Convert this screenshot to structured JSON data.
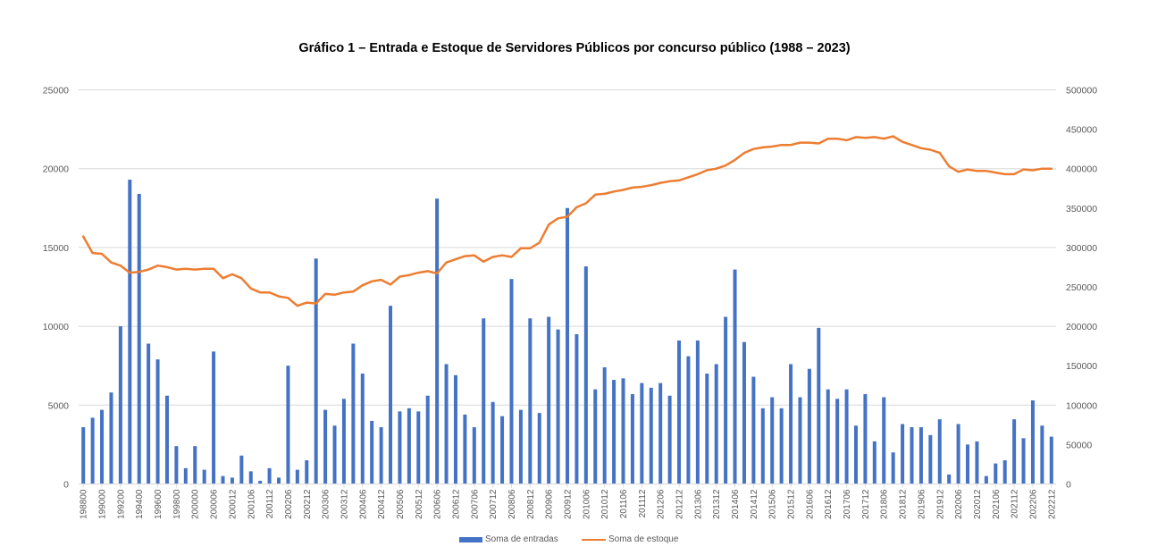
{
  "chart_data": {
    "type": "bar+line",
    "title": "Gráfico 1 – Entrada e Estoque de Servidores Públicos por concurso público (1988 – 2023)",
    "xlabel": "",
    "ylabel_left": "",
    "ylabel_right": "",
    "ylim_left": [
      0,
      25000
    ],
    "yticks_left": [
      "0",
      "5000",
      "10000",
      "15000",
      "20000",
      "25000"
    ],
    "ylim_right": [
      0,
      500000
    ],
    "yticks_right": [
      "0",
      "50000",
      "100000",
      "150000",
      "200000",
      "250000",
      "300000",
      "350000",
      "400000",
      "450000",
      "500000"
    ],
    "grid": true,
    "legend_position": "bottom",
    "x_tick_labels": [
      "198800",
      "199000",
      "199200",
      "199400",
      "199600",
      "199800",
      "200000",
      "200006",
      "200012",
      "200106",
      "200112",
      "200206",
      "200212",
      "200306",
      "200312",
      "200406",
      "200412",
      "200506",
      "200512",
      "200606",
      "200612",
      "200706",
      "200712",
      "200806",
      "200812",
      "200906",
      "200912",
      "201006",
      "201012",
      "201106",
      "201112",
      "201206",
      "201212",
      "201306",
      "201312",
      "201406",
      "201412",
      "201506",
      "201512",
      "201606",
      "201612",
      "201706",
      "201712",
      "201806",
      "201812",
      "201906",
      "201912",
      "202006",
      "202012",
      "202106",
      "202112",
      "202206",
      "202212"
    ],
    "x_label_every": 2,
    "series": [
      {
        "name": "Soma de entradas",
        "type": "bar",
        "axis": "left",
        "color": "#4472c4",
        "values": [
          3600,
          4200,
          4700,
          5800,
          10000,
          19300,
          18400,
          8900,
          7900,
          5600,
          2400,
          1000,
          2400,
          900,
          8400,
          500,
          400,
          1800,
          800,
          200,
          1000,
          400,
          7500,
          900,
          1500,
          14300,
          4700,
          3700,
          5400,
          8900,
          7000,
          4000,
          3600,
          11300,
          4600,
          4800,
          4600,
          5600,
          18100,
          7600,
          6900,
          4400,
          3600,
          10500,
          5200,
          4300,
          13000,
          4700,
          10500,
          4500,
          10600,
          9800,
          17500,
          9500,
          13800,
          6000,
          7400,
          6600,
          6700,
          5700,
          6400,
          6100,
          6400,
          5600,
          9100,
          8100,
          9100,
          7000,
          7600,
          10600,
          13600,
          9000,
          6800,
          4800,
          5500,
          4800,
          7600,
          5500,
          7300,
          9900,
          6000,
          5400,
          6000,
          3700,
          5700,
          2700,
          5500,
          2000,
          3800,
          3600,
          3600,
          3100,
          4100,
          600,
          3800,
          2500,
          2700,
          500,
          1300,
          1500,
          4100,
          2900,
          5300,
          3700,
          3000
        ]
      },
      {
        "name": "Soma de estoque",
        "type": "line",
        "axis": "right",
        "color": "#ed7d31",
        "values": [
          314000,
          293000,
          292000,
          281000,
          277000,
          268000,
          269000,
          272000,
          277000,
          275000,
          272000,
          273000,
          272000,
          273000,
          273000,
          261000,
          266000,
          261000,
          248000,
          243000,
          243000,
          238000,
          236000,
          226000,
          230000,
          229000,
          241000,
          240000,
          243000,
          244000,
          252000,
          257000,
          259000,
          253000,
          263000,
          265000,
          268000,
          270000,
          267000,
          281000,
          285000,
          289000,
          290000,
          282000,
          288000,
          290000,
          288000,
          299000,
          299000,
          306000,
          329000,
          337000,
          339000,
          351000,
          356000,
          367000,
          368000,
          371000,
          373000,
          376000,
          377000,
          379000,
          382000,
          384000,
          385000,
          389000,
          393000,
          398000,
          400000,
          404000,
          411000,
          420000,
          425000,
          427000,
          428000,
          430000,
          430000,
          433000,
          433000,
          432000,
          438000,
          438000,
          436000,
          440000,
          439000,
          440000,
          438000,
          441000,
          434000,
          430000,
          426000,
          424000,
          420000,
          403000,
          396000,
          399000,
          397000,
          397000,
          395000,
          393000,
          393000,
          399000,
          398000,
          400000,
          400000
        ]
      }
    ]
  }
}
